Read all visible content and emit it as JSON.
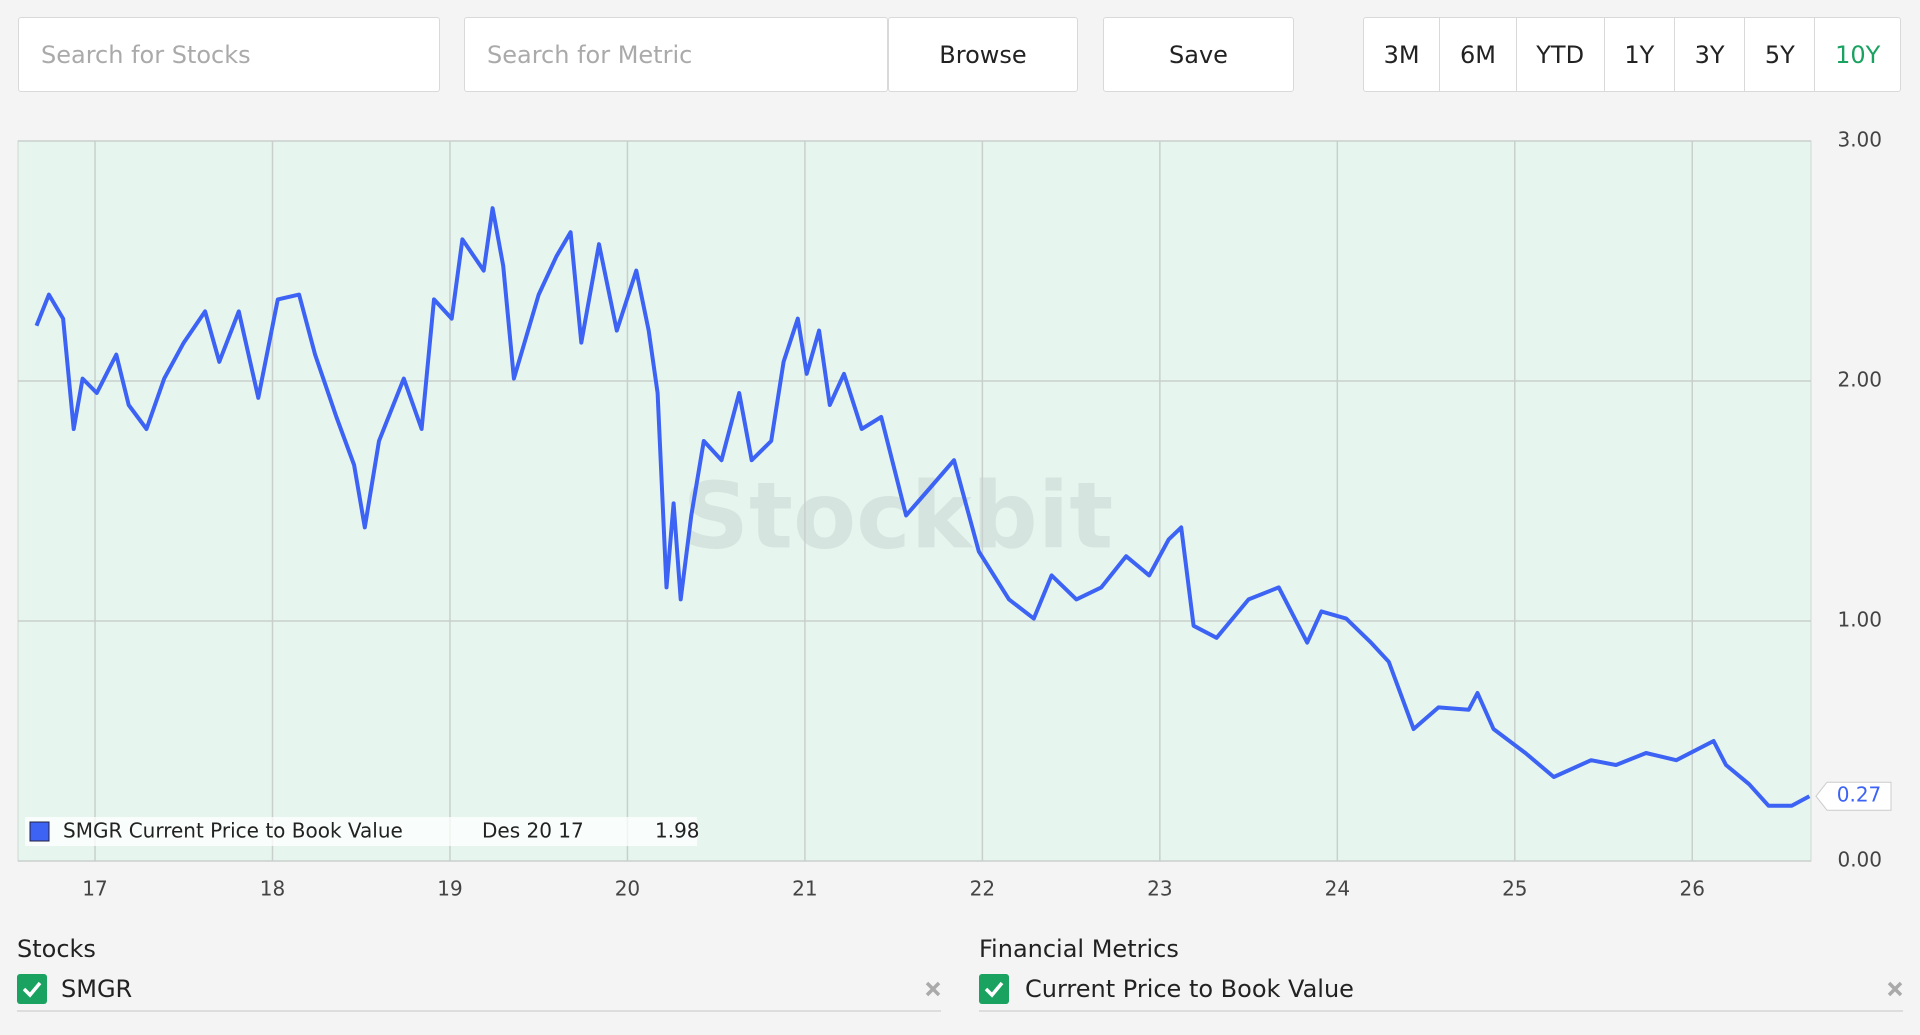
{
  "controls": {
    "search_stocks": "Search for Stocks",
    "search_metric": "Search for Metric",
    "browse": "Browse",
    "save": "Save",
    "periods": [
      "3M",
      "6M",
      "YTD",
      "1Y",
      "3Y",
      "5Y",
      "10Y"
    ],
    "active_period": "10Y"
  },
  "watermark": "Stockbit",
  "chart_data": {
    "type": "line",
    "x": [
      16.67,
      16.74,
      16.82,
      16.88,
      16.93,
      17.01,
      17.12,
      17.19,
      17.29,
      17.39,
      17.5,
      17.62,
      17.7,
      17.81,
      17.92,
      18.03,
      18.15,
      18.24,
      18.36,
      18.46,
      18.52,
      18.6,
      18.74,
      18.84,
      18.91,
      19.01,
      19.07,
      19.19,
      19.24,
      19.3,
      19.36,
      19.5,
      19.6,
      19.68,
      19.74,
      19.84,
      19.94,
      20.05,
      20.12,
      20.17,
      20.22,
      20.26,
      20.3,
      20.36,
      20.43,
      20.53,
      20.63,
      20.7,
      20.81,
      20.88,
      20.96,
      21.01,
      21.08,
      21.14,
      21.22,
      21.32,
      21.43,
      21.57,
      21.7,
      21.84,
      21.98,
      22.15,
      22.29,
      22.39,
      22.53,
      22.67,
      22.81,
      22.94,
      23.05,
      23.12,
      23.19,
      23.32,
      23.5,
      23.67,
      23.83,
      23.91,
      24.05,
      24.19,
      24.29,
      24.43,
      24.57,
      24.74,
      24.79,
      24.88,
      25.06,
      25.22,
      25.43,
      25.57,
      25.74,
      25.91,
      26.12,
      26.19,
      26.32,
      26.43,
      26.56,
      26.66
    ],
    "series": [
      {
        "name": "SMGR Current Price to Book Value",
        "color": "#3d63f5",
        "values": [
          2.23,
          2.36,
          2.26,
          1.8,
          2.01,
          1.95,
          2.11,
          1.9,
          1.8,
          2.01,
          2.16,
          2.29,
          2.08,
          2.29,
          1.93,
          2.34,
          2.36,
          2.11,
          1.85,
          1.65,
          1.39,
          1.75,
          2.01,
          1.8,
          2.34,
          2.26,
          2.59,
          2.46,
          2.72,
          2.48,
          2.01,
          2.36,
          2.52,
          2.62,
          2.16,
          2.57,
          2.21,
          2.46,
          2.21,
          1.95,
          1.14,
          1.49,
          1.09,
          1.44,
          1.75,
          1.67,
          1.95,
          1.67,
          1.75,
          2.08,
          2.26,
          2.03,
          2.21,
          1.9,
          2.03,
          1.8,
          1.85,
          1.44,
          1.55,
          1.67,
          1.29,
          1.09,
          1.01,
          1.19,
          1.09,
          1.14,
          1.27,
          1.19,
          1.34,
          1.39,
          0.98,
          0.93,
          1.09,
          1.14,
          0.91,
          1.04,
          1.01,
          0.91,
          0.83,
          0.55,
          0.64,
          0.63,
          0.7,
          0.55,
          0.45,
          0.35,
          0.42,
          0.4,
          0.45,
          0.42,
          0.5,
          0.4,
          0.32,
          0.23,
          0.23,
          0.27
        ]
      }
    ],
    "xlim": [
      16.566,
      26.669
    ],
    "xticks": [
      17,
      18,
      19,
      20,
      21,
      22,
      23,
      24,
      25,
      26
    ],
    "ylim": [
      0,
      3
    ],
    "yticks": [
      {
        "value": 0,
        "label": "0.00"
      },
      {
        "value": 1,
        "label": "1.00"
      },
      {
        "value": 2,
        "label": "2.00"
      },
      {
        "value": 3,
        "label": "3.00"
      }
    ],
    "grid": true,
    "tooltip": {
      "date": "Des 20 17",
      "value": 1.98
    }
  },
  "stocks": {
    "title": "Stocks",
    "items": [
      "SMGR"
    ]
  },
  "metrics": {
    "title": "Financial Metrics",
    "items": [
      "Current Price to Book Value"
    ]
  }
}
